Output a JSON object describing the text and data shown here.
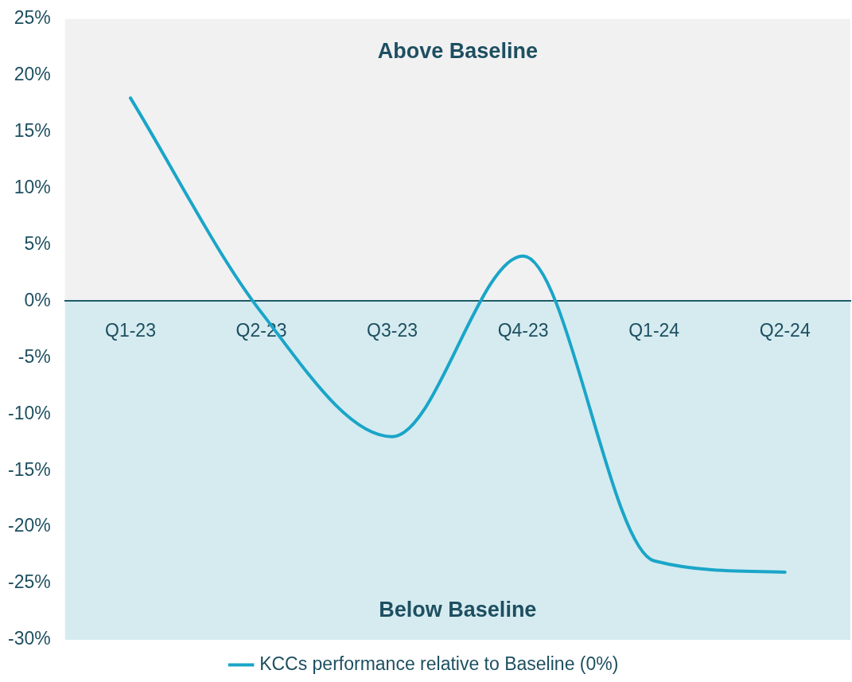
{
  "chart_data": {
    "type": "line",
    "categories": [
      "Q1-23",
      "Q2-23",
      "Q3-23",
      "Q4-23",
      "Q1-24",
      "Q2-24"
    ],
    "series": [
      {
        "name": "KCCs performance relative to Baseline (0%)",
        "color": "#1aa5c8",
        "values": [
          18,
          -1,
          -12,
          4,
          -23,
          -24
        ]
      }
    ],
    "ylim": [
      -30,
      25
    ],
    "yticks": [
      {
        "value": -30,
        "label": "-30%"
      },
      {
        "value": -25,
        "label": "-25%"
      },
      {
        "value": -20,
        "label": "-20%"
      },
      {
        "value": -15,
        "label": "-15%"
      },
      {
        "value": -10,
        "label": "-10%"
      },
      {
        "value": -5,
        "label": "-5%"
      },
      {
        "value": 0,
        "label": "0%"
      },
      {
        "value": 5,
        "label": "5%"
      },
      {
        "value": 10,
        "label": "10%"
      },
      {
        "value": 15,
        "label": "15%"
      },
      {
        "value": 20,
        "label": "20%"
      },
      {
        "value": 25,
        "label": "25%"
      }
    ],
    "bands": [
      {
        "axis": "y",
        "from": 0,
        "to": 25,
        "label": "Above Baseline",
        "color": "#f1f1f2"
      },
      {
        "axis": "y",
        "from": -30,
        "to": 0,
        "label": "Below Baseline",
        "color": "#d5ebf0"
      }
    ],
    "grid": false,
    "legend": "bottom",
    "marker": "none",
    "line_style": "solid"
  }
}
